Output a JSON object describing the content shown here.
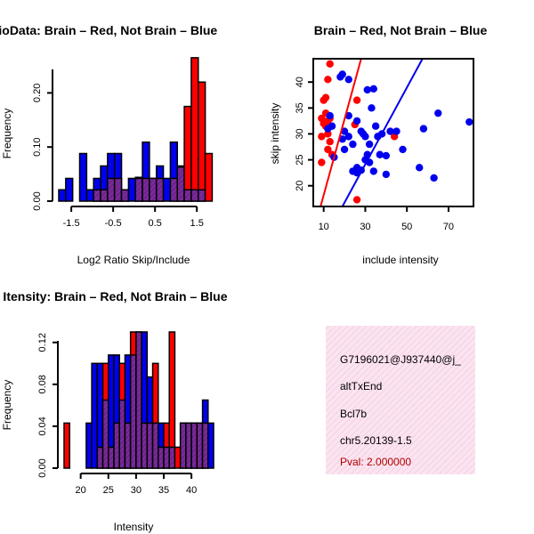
{
  "colors": {
    "red": "#ff0000",
    "blue": "#0000ee",
    "purple": "#7a2a9a",
    "info_bg": "#fbe4f0",
    "hatch": "#e8b8d8",
    "pval": "#b00000"
  },
  "chart_data": [
    {
      "id": "ratio_hist",
      "type": "bar",
      "title": "RatioData: Brain – Red, Not Brain – Blue",
      "xlabel": "Log2 Ratio Skip/Include",
      "ylabel": "Frequency",
      "xlim": [
        -1.8,
        1.9
      ],
      "ylim": [
        0,
        0.25
      ],
      "xticks": [
        -1.5,
        -0.5,
        0.5,
        1.5
      ],
      "xtick_labels": [
        "-1.5",
        "-0.5",
        "0.5",
        "1.5"
      ],
      "yticks": [
        0.0,
        0.1,
        0.2
      ],
      "ytick_labels": [
        "0.00",
        "0.10",
        "0.20"
      ],
      "bin_width": 0.1667,
      "bin_starts": [
        -1.8,
        -1.6333,
        -1.4667,
        -1.3,
        -1.1333,
        -0.9667,
        -0.8,
        -0.6333,
        -0.4667,
        -0.3,
        -0.1333,
        0.0333,
        0.2,
        0.3667,
        0.5333,
        0.7,
        0.8667,
        1.0333,
        1.2,
        1.3667,
        1.5333,
        1.7
      ],
      "series": [
        {
          "name": "Brain",
          "color": "red",
          "values": [
            0,
            0,
            0,
            0,
            0,
            0.021,
            0.021,
            0.042,
            0.042,
            0.021,
            0,
            0.042,
            0.042,
            0.042,
            0.042,
            0,
            0.042,
            0.063,
            0.175,
            0.265,
            0.22,
            0.088
          ]
        },
        {
          "name": "Not Brain",
          "color": "blue",
          "values": [
            0.021,
            0.042,
            0,
            0.088,
            0.021,
            0.042,
            0.065,
            0.088,
            0.088,
            0.021,
            0.042,
            0.044,
            0.109,
            0.042,
            0.065,
            0.042,
            0.109,
            0.065,
            0.021,
            0.021,
            0.021,
            0
          ]
        }
      ]
    },
    {
      "id": "scatter",
      "type": "scatter",
      "title": "Brain – Red, Not Brain – Blue",
      "xlabel": "include intensity",
      "ylabel": "skip intensity",
      "xlim": [
        5,
        82
      ],
      "ylim": [
        16,
        44.5
      ],
      "xticks": [
        10,
        30,
        50,
        70
      ],
      "xtick_labels": [
        "10",
        "30",
        "50",
        "70"
      ],
      "yticks": [
        20,
        25,
        30,
        35,
        40
      ],
      "ytick_labels": [
        "20",
        "25",
        "30",
        "35",
        "40"
      ],
      "series": [
        {
          "name": "Brain",
          "color": "red",
          "points": [
            [
              13,
              43.5
            ],
            [
              12,
              40.5
            ],
            [
              10,
              36.5
            ],
            [
              11,
              37
            ],
            [
              9,
              33
            ],
            [
              10,
              32
            ],
            [
              11,
              31.5
            ],
            [
              12,
              30
            ],
            [
              9,
              29.5
            ],
            [
              13,
              28.5
            ],
            [
              12,
              27
            ],
            [
              14,
              26
            ],
            [
              9,
              24.5
            ],
            [
              26,
              36.5
            ],
            [
              25,
              31.8
            ],
            [
              44,
              29.5
            ],
            [
              26,
              17.3
            ],
            [
              11,
              34
            ],
            [
              12,
              32.5
            ],
            [
              13,
              33
            ]
          ]
        },
        {
          "name": "Not Brain",
          "color": "blue",
          "points": [
            [
              19,
              41.5
            ],
            [
              18,
              41
            ],
            [
              22,
              40.5
            ],
            [
              31,
              38.5
            ],
            [
              34,
              38.7
            ],
            [
              13,
              33.5
            ],
            [
              14,
              31.5
            ],
            [
              12,
              31
            ],
            [
              15,
              25.5
            ],
            [
              19,
              29
            ],
            [
              20,
              30.5
            ],
            [
              22,
              29.5
            ],
            [
              20,
              27
            ],
            [
              24,
              28
            ],
            [
              22,
              33.5
            ],
            [
              26,
              32.5
            ],
            [
              28,
              30.5
            ],
            [
              29,
              30
            ],
            [
              30,
              29.5
            ],
            [
              31,
              26
            ],
            [
              32,
              28
            ],
            [
              33,
              35
            ],
            [
              35,
              31.5
            ],
            [
              36,
              29.5
            ],
            [
              38,
              30
            ],
            [
              37,
              26
            ],
            [
              32,
              24.5
            ],
            [
              30,
              25
            ],
            [
              34,
              22.8
            ],
            [
              26,
              23.5
            ],
            [
              24,
              22.8
            ],
            [
              40,
              25.8
            ],
            [
              40,
              22.2
            ],
            [
              42,
              30.5
            ],
            [
              45,
              30.5
            ],
            [
              48,
              27
            ],
            [
              56,
              23.5
            ],
            [
              58,
              31
            ],
            [
              63,
              21.5
            ],
            [
              65,
              34
            ],
            [
              80,
              32.3
            ],
            [
              26,
              22.5
            ],
            [
              28,
              23
            ]
          ]
        }
      ],
      "fit_lines": [
        {
          "name": "Brain fit",
          "color": "red",
          "from": [
            8.5,
            16
          ],
          "to": [
            28,
            44.5
          ]
        },
        {
          "name": "Not Brain fit",
          "color": "blue",
          "from": [
            19,
            16
          ],
          "to": [
            57.5,
            44.5
          ]
        }
      ]
    },
    {
      "id": "intensity_hist",
      "type": "bar",
      "title": "Gene Itensity: Brain – Red, Not Brain – Blue",
      "xlabel": "Intensity",
      "ylabel": "Frequency",
      "xlim": [
        17,
        44
      ],
      "ylim": [
        0,
        0.13
      ],
      "xticks": [
        20,
        25,
        30,
        35,
        40
      ],
      "xtick_labels": [
        "20",
        "25",
        "30",
        "35",
        "40"
      ],
      "yticks": [
        0.0,
        0.04,
        0.08,
        0.12
      ],
      "ytick_labels": [
        "0.00",
        "0.04",
        "0.08",
        "0.12"
      ],
      "bin_width": 1,
      "bin_starts": [
        17,
        18,
        19,
        20,
        21,
        22,
        23,
        24,
        25,
        26,
        27,
        28,
        29,
        30,
        31,
        32,
        33,
        34,
        35,
        36,
        37,
        38,
        39,
        40,
        41,
        42,
        43
      ],
      "series": [
        {
          "name": "Brain",
          "color": "red",
          "values": [
            0.043,
            0,
            0,
            0,
            0,
            0,
            0.02,
            0.1,
            0.02,
            0.043,
            0.1,
            0.043,
            0.13,
            0.13,
            0.043,
            0.043,
            0.1,
            0.02,
            0.043,
            0.13,
            0.02,
            0.043,
            0.043,
            0.043,
            0.043,
            0.043,
            0
          ]
        },
        {
          "name": "Not Brain",
          "color": "blue",
          "values": [
            0,
            0,
            0,
            0,
            0.043,
            0.1,
            0.1,
            0.065,
            0.108,
            0.108,
            0.065,
            0.108,
            0.108,
            0.13,
            0.13,
            0.087,
            0.043,
            0.043,
            0.02,
            0.02,
            0,
            0.043,
            0.043,
            0.043,
            0.043,
            0.065,
            0.043
          ]
        }
      ]
    }
  ],
  "info_panel": {
    "lines": [
      "G7196021@J937440@j_",
      "altTxEnd",
      "Bcl7b",
      "chr5.20139-1.5"
    ],
    "pval": "Pval: 2.000000"
  }
}
